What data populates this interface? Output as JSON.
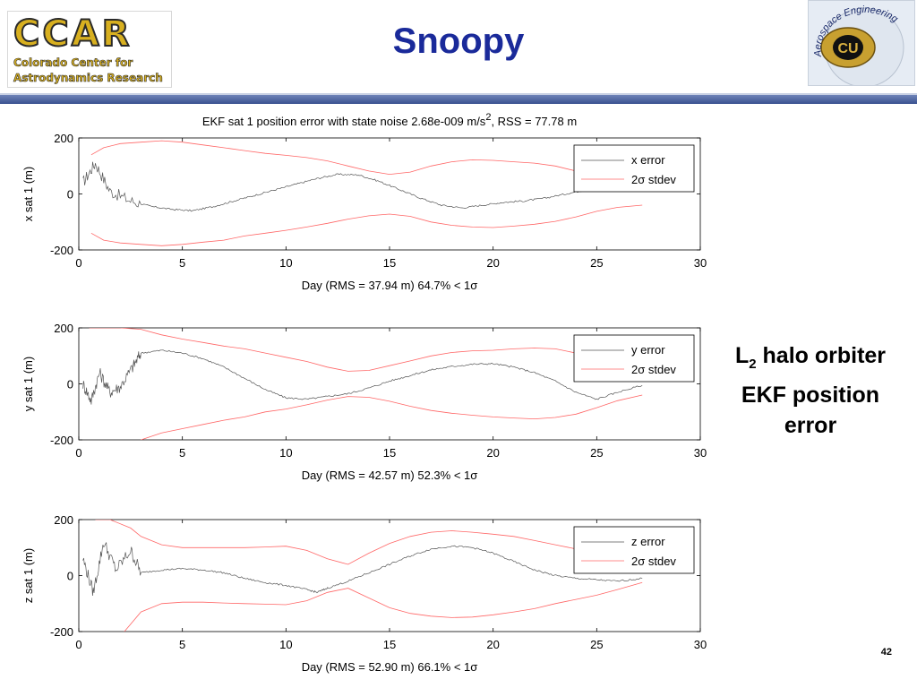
{
  "header": {
    "title": "Snoopy",
    "logo_left": {
      "big": "CCAR",
      "line1": "Colorado Center for",
      "line2": "Astrodynamics Research"
    },
    "logo_right": {
      "text": "Aerospace Engineering",
      "mark": "CU"
    }
  },
  "side": {
    "line1_prefix": "L",
    "line1_sub": "2",
    "line1_rest": " halo orbiter",
    "line2": "EKF position",
    "line3": "error"
  },
  "page_number": "42",
  "colors": {
    "title": "#1a2a9a",
    "rule": "#3a5290",
    "error_line": "#555555",
    "stdev_line": "#ff6666"
  },
  "chart_data": [
    {
      "type": "line",
      "title": "EKF sat 1 position error with state noise 2.68e-009 m/s², RSS = 77.78 m",
      "title_main": "EKF sat 1 position error with state noise 2.68e-009 m/s",
      "title_sup": "2",
      "title_tail": ", RSS = 77.78 m",
      "xlabel": "Day (RMS = 37.94 m) 64.7% < 1σ",
      "ylabel": "x sat 1 (m)",
      "xlim": [
        0,
        30
      ],
      "ylim": [
        -200,
        200
      ],
      "xticks": [
        "0",
        "5",
        "10",
        "15",
        "20",
        "25",
        "30"
      ],
      "yticks": [
        "-200",
        "0",
        "200"
      ],
      "legend": {
        "placement": "top-right",
        "entries": [
          "x error",
          "2σ stdev"
        ]
      },
      "series": [
        {
          "name": "x error",
          "x": [
            0.2,
            0.8,
            1.5,
            2.5,
            3.5,
            4.5,
            5.5,
            6.5,
            7.5,
            8.5,
            9.5,
            10.5,
            11.5,
            12.5,
            13.5,
            14.5,
            15.5,
            16.5,
            17.5,
            18.5,
            19.5,
            20.5,
            21.5,
            22.5,
            23.5,
            24.5,
            25.5,
            26.5,
            27.2
          ],
          "y": [
            40,
            110,
            10,
            -25,
            -45,
            -55,
            -60,
            -45,
            -25,
            -5,
            15,
            35,
            55,
            70,
            68,
            45,
            15,
            -15,
            -40,
            -50,
            -40,
            -30,
            -25,
            -15,
            0,
            15,
            35,
            50,
            55
          ]
        },
        {
          "name": "2σ stdev",
          "x": [
            0.6,
            1.2,
            2,
            3,
            4,
            5,
            6,
            7,
            8,
            9,
            10,
            11,
            12,
            13,
            14,
            15,
            16,
            17,
            18,
            19,
            20,
            21,
            22,
            23,
            24,
            25,
            26,
            27.2
          ],
          "y": [
            140,
            165,
            180,
            185,
            190,
            185,
            175,
            165,
            155,
            145,
            138,
            130,
            118,
            100,
            82,
            70,
            78,
            100,
            115,
            122,
            120,
            115,
            110,
            100,
            82,
            62,
            50,
            45
          ]
        },
        {
          "name": "2σ stdev lower",
          "x": [
            0.6,
            1.2,
            2,
            3,
            4,
            5,
            6,
            7,
            8,
            9,
            10,
            11,
            12,
            13,
            14,
            15,
            16,
            17,
            18,
            19,
            20,
            21,
            22,
            23,
            24,
            25,
            26,
            27.2
          ],
          "y": [
            -140,
            -165,
            -175,
            -180,
            -185,
            -180,
            -172,
            -165,
            -150,
            -140,
            -130,
            -118,
            -105,
            -90,
            -78,
            -72,
            -80,
            -100,
            -112,
            -118,
            -120,
            -115,
            -108,
            -98,
            -82,
            -62,
            -48,
            -40
          ]
        }
      ]
    },
    {
      "type": "line",
      "title": "",
      "xlabel": "Day (RMS = 42.57 m) 52.3% < 1σ",
      "ylabel": "y sat 1 (m)",
      "xlim": [
        0,
        30
      ],
      "ylim": [
        -200,
        200
      ],
      "xticks": [
        "0",
        "5",
        "10",
        "15",
        "20",
        "25",
        "30"
      ],
      "yticks": [
        "-200",
        "0",
        "200"
      ],
      "legend": {
        "placement": "top-right",
        "entries": [
          "y error",
          "2σ stdev"
        ]
      },
      "series": [
        {
          "name": "y error",
          "x": [
            0.2,
            0.6,
            1,
            1.5,
            2,
            2.6,
            3,
            4,
            5,
            6,
            7,
            8,
            9,
            10,
            11,
            12,
            13,
            14,
            15,
            16,
            17,
            18,
            19,
            20,
            21,
            22,
            23,
            24,
            25,
            26,
            27.2
          ],
          "y": [
            0,
            -60,
            40,
            -30,
            -10,
            60,
            110,
            120,
            110,
            90,
            60,
            20,
            -20,
            -50,
            -55,
            -45,
            -35,
            -15,
            10,
            30,
            50,
            62,
            70,
            72,
            60,
            40,
            10,
            -30,
            -55,
            -30,
            -5
          ]
        },
        {
          "name": "2σ stdev",
          "x": [
            0.5,
            1,
            2,
            3,
            4,
            5,
            6,
            7,
            8,
            9,
            10,
            11,
            12,
            13,
            14,
            15,
            16,
            17,
            18,
            19,
            20,
            21,
            22,
            23,
            24,
            25,
            26,
            27.2
          ],
          "y": [
            200,
            200,
            200,
            195,
            175,
            160,
            148,
            135,
            125,
            110,
            95,
            80,
            60,
            45,
            48,
            65,
            82,
            100,
            112,
            118,
            120,
            125,
            128,
            125,
            110,
            85,
            58,
            40
          ]
        },
        {
          "name": "2σ stdev lower",
          "x": [
            3,
            4,
            5,
            6,
            7,
            8,
            9,
            10,
            11,
            12,
            13,
            14,
            15,
            16,
            17,
            18,
            19,
            20,
            21,
            22,
            23,
            24,
            25,
            26,
            27.2
          ],
          "y": [
            -200,
            -175,
            -160,
            -145,
            -130,
            -118,
            -100,
            -90,
            -75,
            -58,
            -45,
            -48,
            -62,
            -80,
            -95,
            -105,
            -112,
            -118,
            -122,
            -125,
            -120,
            -108,
            -85,
            -60,
            -40
          ]
        }
      ]
    },
    {
      "type": "line",
      "title": "",
      "xlabel": "Day (RMS = 52.90 m) 66.1% < 1σ",
      "ylabel": "z sat 1 (m)",
      "xlim": [
        0,
        30
      ],
      "ylim": [
        -200,
        200
      ],
      "xticks": [
        "0",
        "5",
        "10",
        "15",
        "20",
        "25",
        "30"
      ],
      "yticks": [
        "-200",
        "0",
        "200"
      ],
      "legend": {
        "placement": "top-right",
        "entries": [
          "z error",
          "2σ stdev"
        ]
      },
      "series": [
        {
          "name": "z error",
          "x": [
            0.2,
            0.7,
            1.2,
            1.8,
            2.5,
            3,
            4,
            5,
            6,
            7,
            8,
            9,
            10,
            11,
            11.5,
            12,
            13,
            14,
            15,
            16,
            17,
            18,
            19,
            20,
            21,
            22,
            23,
            24,
            25,
            26,
            27.2
          ],
          "y": [
            60,
            -60,
            120,
            20,
            90,
            10,
            20,
            25,
            20,
            10,
            -10,
            -25,
            -35,
            -50,
            -60,
            -45,
            -20,
            10,
            40,
            70,
            95,
            105,
            100,
            80,
            50,
            20,
            0,
            -10,
            -15,
            -20,
            -10
          ]
        },
        {
          "name": "2σ stdev",
          "x": [
            0.8,
            1.5,
            2.5,
            3,
            4,
            5,
            6,
            7,
            8,
            9,
            10,
            11,
            12,
            13,
            14,
            15,
            16,
            17,
            18,
            19,
            20,
            21,
            22,
            23,
            24,
            25,
            26,
            27.2
          ],
          "y": [
            200,
            200,
            170,
            140,
            110,
            100,
            100,
            100,
            100,
            102,
            105,
            90,
            60,
            40,
            80,
            115,
            140,
            155,
            160,
            155,
            148,
            140,
            125,
            110,
            95,
            80,
            55,
            30
          ]
        },
        {
          "name": "2σ stdev lower",
          "x": [
            2.2,
            3,
            4,
            5,
            6,
            7,
            8,
            9,
            10,
            11,
            12,
            13,
            14,
            15,
            16,
            17,
            18,
            19,
            20,
            21,
            22,
            23,
            24,
            25,
            26,
            27.2
          ],
          "y": [
            -200,
            -130,
            -100,
            -95,
            -95,
            -98,
            -100,
            -102,
            -104,
            -90,
            -60,
            -45,
            -80,
            -115,
            -135,
            -145,
            -150,
            -148,
            -140,
            -130,
            -118,
            -100,
            -85,
            -70,
            -50,
            -25
          ]
        }
      ]
    }
  ]
}
